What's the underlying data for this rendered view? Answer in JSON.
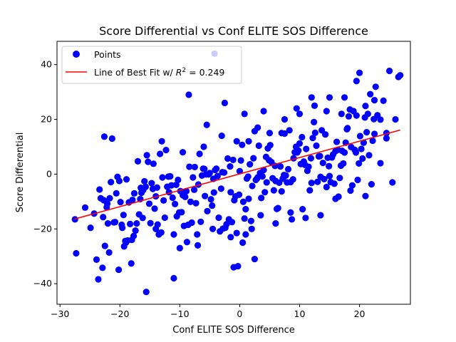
{
  "chart_data": {
    "type": "scatter",
    "title": "Score Differential vs Conf ELITE SOS Difference",
    "xlabel": "Conf ELITE SOS Difference",
    "ylabel": "Score Differential",
    "xlim": [
      -30.5,
      28.5
    ],
    "ylim": [
      -47.5,
      48.5
    ],
    "xticks": [
      -30,
      -20,
      -10,
      0,
      10,
      20
    ],
    "yticks": [
      -40,
      -20,
      0,
      20,
      40
    ],
    "tick_labels_x": [
      "−30",
      "−20",
      "−10",
      "0",
      "10",
      "20"
    ],
    "tick_labels_y": [
      "−40",
      "−20",
      "0",
      "20",
      "40"
    ],
    "grid": false,
    "legend_position": "upper-left",
    "series": [
      {
        "name": "Points",
        "color": "#0000ff",
        "x": [
          -27.5,
          -27.3,
          -25.8,
          -24.9,
          -24.3,
          -23.9,
          -23.6,
          -23.4,
          -23.2,
          -22.9,
          -22.8,
          -22.7,
          -22.6,
          -22.5,
          -22.2,
          -22.1,
          -21.8,
          -21.7,
          -21.5,
          -21.3,
          -21.0,
          -20.8,
          -20.6,
          -20.4,
          -20.2,
          -20.1,
          -19.9,
          -19.7,
          -19.6,
          -19.4,
          -19.3,
          -19.1,
          -18.9,
          -18.7,
          -18.5,
          -18.3,
          -18.1,
          -17.9,
          -17.7,
          -17.6,
          -17.4,
          -17.2,
          -17.0,
          -16.8,
          -16.6,
          -16.4,
          -16.2,
          -16.1,
          -15.9,
          -15.7,
          -15.5,
          -15.3,
          -15.1,
          -14.9,
          -14.7,
          -14.5,
          -14.4,
          -14.2,
          -14.0,
          -13.8,
          -13.7,
          -13.5,
          -13.3,
          -13.1,
          -12.9,
          -12.7,
          -12.5,
          -12.3,
          -12.1,
          -11.9,
          -11.8,
          -11.6,
          -11.4,
          -11.2,
          -11.0,
          -10.8,
          -10.6,
          -10.5,
          -10.3,
          -10.1,
          -9.9,
          -9.7,
          -9.5,
          -9.3,
          -9.1,
          -8.9,
          -8.8,
          -8.6,
          -8.4,
          -8.2,
          -8.0,
          -7.8,
          -7.6,
          -7.5,
          -7.3,
          -7.1,
          -6.9,
          -6.7,
          -6.5,
          -6.3,
          -6.1,
          -5.9,
          -5.8,
          -5.6,
          -5.4,
          -5.2,
          -5.0,
          -4.8,
          -4.6,
          -4.4,
          -4.3,
          -4.1,
          -3.9,
          -3.7,
          -3.5,
          -3.3,
          -3.1,
          -2.9,
          -2.8,
          -2.6,
          -2.4,
          -2.2,
          -2.0,
          -1.8,
          -1.6,
          -1.5,
          -1.3,
          -1.1,
          -0.9,
          -0.7,
          -0.5,
          -0.3,
          -0.1,
          0.0,
          0.2,
          0.4,
          0.6,
          0.8,
          1.0,
          1.2,
          1.4,
          1.5,
          1.7,
          1.9,
          2.1,
          2.3,
          2.5,
          2.7,
          2.9,
          3.0,
          3.2,
          3.4,
          3.6,
          3.8,
          4.0,
          4.2,
          4.4,
          4.5,
          4.7,
          4.9,
          5.1,
          5.3,
          5.5,
          5.7,
          5.9,
          6.0,
          6.2,
          6.4,
          6.6,
          6.8,
          7.0,
          7.2,
          7.4,
          7.5,
          7.7,
          7.9,
          8.1,
          8.3,
          8.5,
          8.7,
          8.9,
          9.0,
          9.2,
          9.4,
          9.6,
          9.8,
          10.0,
          10.2,
          10.4,
          10.5,
          10.7,
          10.9,
          11.1,
          11.3,
          11.5,
          11.7,
          11.9,
          12.0,
          12.2,
          12.4,
          12.6,
          12.8,
          13.0,
          13.2,
          13.4,
          13.5,
          13.7,
          13.9,
          14.1,
          14.3,
          14.5,
          14.7,
          14.9,
          15.0,
          15.2,
          15.4,
          15.6,
          15.8,
          16.0,
          16.2,
          16.4,
          16.5,
          16.7,
          16.9,
          17.1,
          17.3,
          17.5,
          17.7,
          17.9,
          18.0,
          18.2,
          18.4,
          18.6,
          18.8,
          19.0,
          19.2,
          19.4,
          19.5,
          19.7,
          19.9,
          20.1,
          20.3,
          20.5,
          20.7,
          20.9,
          21.0,
          21.2,
          21.4,
          21.6,
          21.8,
          22.0,
          22.2,
          22.4,
          22.5,
          22.7,
          23.0,
          23.5,
          24.0,
          24.5,
          25.0,
          25.5,
          26.0,
          26.5,
          26.8,
          -15.6,
          -11.0,
          -4.2,
          -1.0,
          0.5,
          2.0,
          3.5,
          6.0,
          8.5,
          11.0,
          13.5,
          16.0,
          18.5,
          21.0,
          23.5,
          -22.0,
          -19.0,
          -16.5,
          -13.0,
          -9.5,
          -6.0,
          -3.0,
          -0.5,
          1.5,
          3.0,
          5.0,
          7.5,
          10.0,
          12.5,
          15.0,
          17.5,
          20.0,
          22.5,
          24.5,
          -8.5,
          -5.5,
          -2.5,
          0.8,
          4.0,
          7.0,
          9.5,
          12.0,
          14.5,
          17.0,
          19.5,
          -18.0,
          -14.0,
          -10.0,
          -7.0,
          -4.5,
          -1.5,
          1.0,
          2.5
        ],
        "y": [
          -16.5,
          -28.9,
          -12.2,
          -19.6,
          -14.4,
          -31.2,
          -38.4,
          -5.6,
          -8.8,
          -34.2,
          -15.7,
          -9.5,
          13.7,
          -26.2,
          -12.1,
          -10.8,
          -28.6,
          -8.8,
          -2.9,
          13.0,
          -17.6,
          -17.5,
          -7.0,
          -1.0,
          -34.9,
          -2.5,
          -10.2,
          -18.5,
          -19.6,
          -14.9,
          -26.4,
          -24.4,
          -1.9,
          -24.2,
          -10.3,
          -18.2,
          -32.6,
          -9.4,
          -22.6,
          -7.0,
          -20.6,
          -18.0,
          4.7,
          -14.7,
          -9.1,
          -6.8,
          -16.0,
          -5.8,
          -2.6,
          -4.6,
          6.9,
          4.5,
          -10.8,
          -17.9,
          -3.3,
          -5.4,
          3.8,
          -12.6,
          -8.1,
          -4.9,
          -18.4,
          -22.0,
          7.4,
          -21.3,
          -1.2,
          -9.6,
          -15.9,
          8.8,
          -4.6,
          -0.9,
          -6.6,
          -0.8,
          -4.1,
          -8.6,
          -22.0,
          -10.9,
          -3.9,
          -15.4,
          -2.1,
          -14.0,
          -6.2,
          -13.9,
          -7.7,
          -18.9,
          -8.3,
          -6.2,
          -24.8,
          -18.5,
          2.7,
          -10.1,
          -17.7,
          -1.2,
          -5.7,
          2.6,
          -10.6,
          -22.0,
          -3.8,
          7.4,
          -17.4,
          -0.5,
          2.0,
          1.9,
          -8.0,
          -0.1,
          -13.5,
          -0.1,
          0.4,
          -9.2,
          -11.5,
          -1.7,
          -6.7,
          1.5,
          2.0,
          -0.7,
          -15.9,
          -20.9,
          -5.3,
          0.7,
          -19.9,
          0.6,
          -19.6,
          -18.3,
          5.7,
          -16.5,
          2.8,
          -6.6,
          -17.5,
          5.2,
          -9.5,
          -8.1,
          -21.5,
          -33.6,
          -7.5,
          1.1,
          5.0,
          10.7,
          -10.1,
          -16.2,
          -12.8,
          -1.6,
          -0.9,
          -9.0,
          3.6,
          -17.1,
          -4.3,
          5.8,
          15.7,
          -2.1,
          -1.6,
          -1.2,
          10.4,
          0.4,
          -8.7,
          -0.8,
          1.5,
          -6.6,
          6.3,
          -3.0,
          9.4,
          5.1,
          10.6,
          4.4,
          -1.5,
          -5.9,
          3.0,
          -2.5,
          -12.7,
          -12.4,
          -3.1,
          2.8,
          -6.3,
          -1.6,
          -0.3,
          14.8,
          -0.5,
          -3.0,
          1.8,
          16.0,
          -2.9,
          -16.5,
          -1.9,
          5.8,
          8.0,
          10.0,
          7.9,
          8.6,
          11.2,
          3.7,
          13.5,
          -12.8,
          4.6,
          3.4,
          9.2,
          1.2,
          2.7,
          -5.9,
          5.8,
          -3.2,
          13.2,
          19.0,
          15.1,
          10.4,
          -2.8,
          6.5,
          6.6,
          -1.0,
          16.0,
          4.1,
          -1.8,
          14.5,
          -4.7,
          6.0,
          2.9,
          -0.7,
          -2.9,
          6.1,
          7.2,
          -3.5,
          8.4,
          11.8,
          8.9,
          -8.2,
          -1.4,
          3.1,
          8.5,
          3.9,
          7.9,
          11.5,
          16.4,
          16.8,
          21.1,
          23.6,
          9.9,
          -4.1,
          23.0,
          8.9,
          7.9,
          21.4,
          -2.1,
          3.9,
          13.9,
          9.2,
          5.7,
          11.5,
          20.7,
          24.9,
          15.3,
          22.0,
          6.9,
          29.2,
          -3.7,
          12.2,
          20.1,
          14.7,
          31.9,
          21.5,
          19.9,
          26.8,
          13.1,
          37.7,
          -3.0,
          20.0,
          35.5,
          36.1,
          -43.0,
          -38.0,
          44.0,
          -34.0,
          -25.0,
          -20.0,
          -15.0,
          -18.0,
          -14.0,
          -16.0,
          -15.0,
          -9.0,
          -6.0,
          -8.0,
          4.0,
          -18.0,
          -25.0,
          -5.0,
          12.0,
          8.0,
          10.0,
          14.0,
          12.0,
          12.0,
          17.0,
          15.0,
          20.0,
          22.0,
          25.0,
          28.0,
          28.0,
          37.0,
          27.0,
          15.0,
          29.0,
          18.0,
          26.0,
          22.0,
          23.0,
          15.0,
          24.0,
          28.0,
          23.0,
          22.0,
          34.0,
          -24.0,
          -20.0,
          -27.0,
          -26.0,
          -20.0,
          -23.0,
          -22.0,
          -31.0
        ],
        "style": "circle"
      },
      {
        "name": "Line of Best Fit w/ $R^2 = 0.249$",
        "color": "#ff0000",
        "type": "line",
        "x": [
          -27.6,
          26.8
        ],
        "y": [
          -16.4,
          16.1
        ]
      }
    ]
  }
}
